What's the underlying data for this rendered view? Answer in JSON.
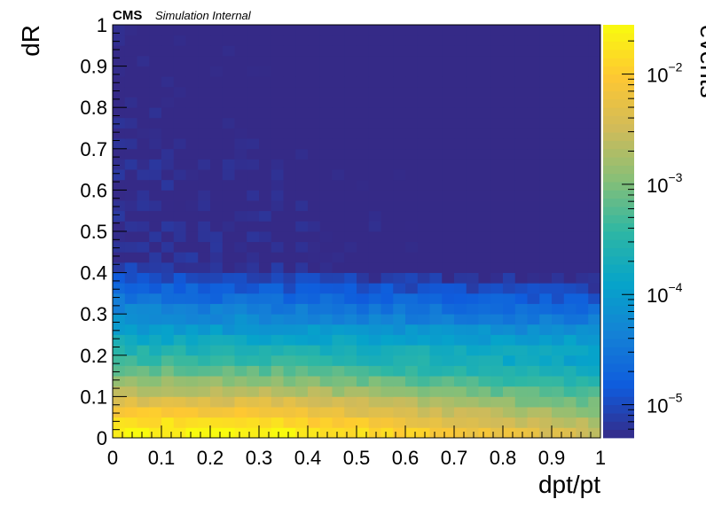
{
  "chart_data": {
    "type": "heatmap",
    "header": {
      "experiment": "CMS",
      "tag": "Simulation Internal"
    },
    "xlabel": "dpt/pt",
    "ylabel": "dR",
    "zlabel": "events",
    "xlim": [
      0,
      1
    ],
    "ylim": [
      0,
      1
    ],
    "zscale": "log",
    "zlim": [
      5e-06,
      0.028
    ],
    "x_ticks": [
      "0",
      "0.1",
      "0.2",
      "0.3",
      "0.4",
      "0.5",
      "0.6",
      "0.7",
      "0.8",
      "0.9",
      "1"
    ],
    "y_ticks": [
      "0",
      "0.1",
      "0.2",
      "0.3",
      "0.4",
      "0.5",
      "0.6",
      "0.7",
      "0.8",
      "0.9",
      "1"
    ],
    "z_ticks": [
      {
        "value": 0.01,
        "base": "10",
        "exp": "−2"
      },
      {
        "value": 0.001,
        "base": "10",
        "exp": "−3"
      },
      {
        "value": 0.0001,
        "base": "10",
        "exp": "−4"
      },
      {
        "value": 1e-05,
        "base": "10",
        "exp": "−5"
      }
    ],
    "bins": {
      "nx": 40,
      "ny": 40
    },
    "grid": false,
    "colormap": "parula",
    "colors": {
      "ramp": [
        "#352a87",
        "#0f5cdd",
        "#1481d6",
        "#06a4ca",
        "#2eb7a4",
        "#87bf77",
        "#d1bb59",
        "#fec832",
        "#f9fb0e"
      ]
    },
    "description_of_distribution": {
      "peak_region": {
        "dRmax": 0.05,
        "dptpt_max": 0.3,
        "value": 0.02
      },
      "core_region": {
        "dRmax": 0.2,
        "dptpt_max": 1.0,
        "value_range": [
          0.0003,
          0.005
        ]
      },
      "tail_region": {
        "dRmin": 0.4,
        "value_range": [
          6e-06,
          5e-05
        ]
      }
    }
  }
}
